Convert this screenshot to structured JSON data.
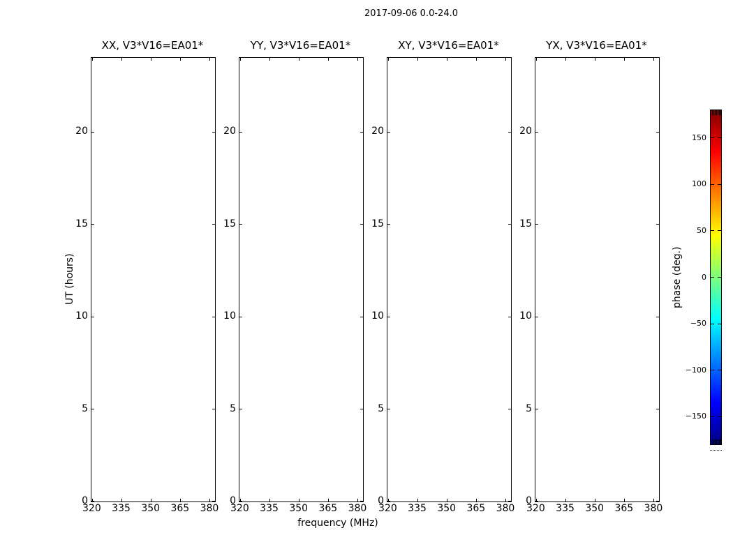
{
  "colors": {
    "background": "#ffffff",
    "foreground": "#000000"
  },
  "chart_data": {
    "type": "heatmap",
    "title": "2017-09-06 0.0-24.0",
    "xlabel": "frequency (MHz)",
    "ylabel": "UT (hours)",
    "grid": false,
    "panels": [
      {
        "title": "XX, V3*V16=EA01*",
        "values": []
      },
      {
        "title": "YY, V3*V16=EA01*",
        "values": []
      },
      {
        "title": "XY, V3*V16=EA01*",
        "values": []
      },
      {
        "title": "YX, V3*V16=EA01*",
        "values": []
      }
    ],
    "xlim": [
      319.5,
      382.5
    ],
    "ylim": [
      0,
      24
    ],
    "x_ticks": [
      320,
      335,
      350,
      365,
      380
    ],
    "x_tick_labels": [
      "320",
      "335",
      "350",
      "365",
      "380"
    ],
    "y_ticks": [
      0,
      5,
      10,
      15,
      20
    ],
    "y_tick_labels": [
      "0",
      "5",
      "10",
      "15",
      "20"
    ],
    "colorbar": {
      "label": "phase (deg.)",
      "colormap": "jet",
      "lim": [
        -180,
        180
      ],
      "ticks": [
        150,
        100,
        50,
        0,
        -50,
        -100,
        -150
      ],
      "tick_labels": [
        "150",
        "100",
        "50",
        "0",
        "−50",
        "−100",
        "−150"
      ],
      "stops": [
        {
          "pos": 0.0,
          "color": "#800000"
        },
        {
          "pos": 0.125,
          "color": "#ff0000"
        },
        {
          "pos": 0.375,
          "color": "#ffff00"
        },
        {
          "pos": 0.5,
          "color": "#7dff7d"
        },
        {
          "pos": 0.625,
          "color": "#00ffff"
        },
        {
          "pos": 0.875,
          "color": "#0000ff"
        },
        {
          "pos": 1.0,
          "color": "#000080"
        }
      ]
    }
  }
}
